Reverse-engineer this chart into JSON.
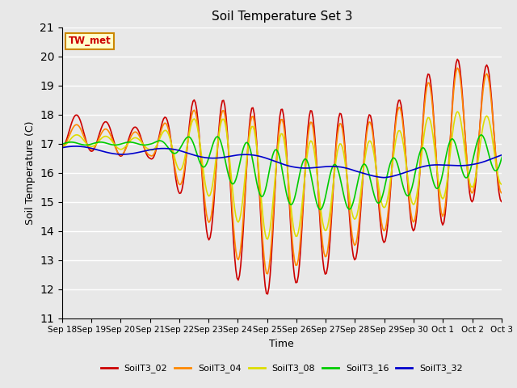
{
  "title": "Soil Temperature Set 3",
  "xlabel": "Time",
  "ylabel": "Soil Temperature (C)",
  "ylim": [
    11.0,
    21.0
  ],
  "yticks": [
    11.0,
    12.0,
    13.0,
    14.0,
    15.0,
    16.0,
    17.0,
    18.0,
    19.0,
    20.0,
    21.0
  ],
  "bg_color": "#e8e8e8",
  "annotation_text": "TW_met",
  "annotation_color": "#cc0000",
  "annotation_bg": "#ffffcc",
  "annotation_border": "#cc8800",
  "series_colors": [
    "#cc0000",
    "#ff8800",
    "#dddd00",
    "#00cc00",
    "#0000cc"
  ],
  "series_names": [
    "SoilT3_02",
    "SoilT3_04",
    "SoilT3_08",
    "SoilT3_16",
    "SoilT3_32"
  ],
  "xtick_labels": [
    "Sep 18",
    "Sep 19",
    "Sep 20",
    "Sep 21",
    "Sep 22",
    "Sep 23",
    "Sep 24",
    "Sep 25",
    "Sep 26",
    "Sep 27",
    "Sep 28",
    "Sep 29",
    "Sep 30",
    "Oct 1",
    "Oct 2",
    "Oct 3"
  ]
}
